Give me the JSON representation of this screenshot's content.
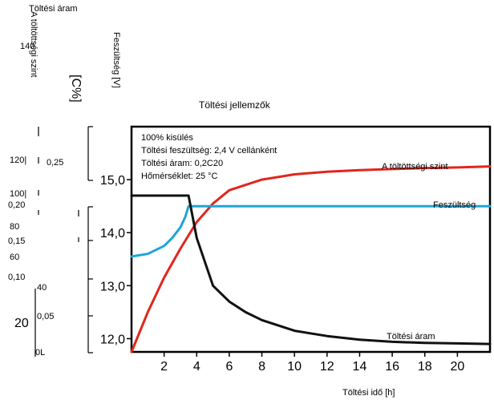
{
  "chart_data": {
    "type": "line",
    "title": "Töltési jellemzők",
    "xlabel": "Töltési idő [h]",
    "ylabel": "Feszültség [V]",
    "ylabel_current": "Töltési áram",
    "ylabel_current_unit": "[C%]",
    "ylabel_soc": "A töltöttségi szint",
    "xlim": [
      0,
      22
    ],
    "ylim": [
      11.75,
      16.0
    ],
    "x_ticks": [
      "2",
      "4",
      "6",
      "8",
      "10",
      "12",
      "14",
      "16",
      "18",
      "20"
    ],
    "y_ticks": [
      "12,0",
      "13,0",
      "14,0",
      "15,0"
    ],
    "current_ticks": [
      "0,05",
      "0,10",
      "0,15",
      "0,20",
      "0,25"
    ],
    "soc_ticks": [
      "0L",
      "20",
      "40",
      "60",
      "80",
      "100|",
      "120|",
      "140"
    ],
    "annotations": [
      "100% kisülés",
      "Töltési feszültség: 2,4 V cellánként",
      "Töltési áram: 0,2C20",
      "Hőmérséklet: 25 °C"
    ],
    "series": [
      {
        "name": "A töltöttségi szint",
        "color": "#e0261d",
        "x": [
          0,
          1,
          2,
          3,
          4,
          5,
          6,
          8,
          10,
          12,
          14,
          16,
          18,
          20,
          22
        ],
        "y": [
          11.75,
          12.5,
          13.15,
          13.7,
          14.2,
          14.55,
          14.8,
          15.0,
          15.1,
          15.15,
          15.18,
          15.2,
          15.22,
          15.23,
          15.25
        ]
      },
      {
        "name": "Feszültség",
        "color": "#1ea5d8",
        "x": [
          0,
          1,
          2,
          2.5,
          3,
          3.3,
          3.5,
          3.6,
          22
        ],
        "y": [
          13.55,
          13.6,
          13.75,
          13.9,
          14.1,
          14.3,
          14.5,
          14.5,
          14.5
        ]
      },
      {
        "name": "Töltési áram",
        "color": "#111111",
        "x": [
          0,
          3.5,
          4,
          5,
          6,
          7,
          8,
          10,
          12,
          14,
          16,
          18,
          20,
          22
        ],
        "y": [
          14.7,
          14.7,
          13.9,
          13.0,
          12.7,
          12.5,
          12.35,
          12.15,
          12.05,
          11.98,
          11.94,
          11.92,
          11.91,
          11.9
        ]
      }
    ]
  }
}
